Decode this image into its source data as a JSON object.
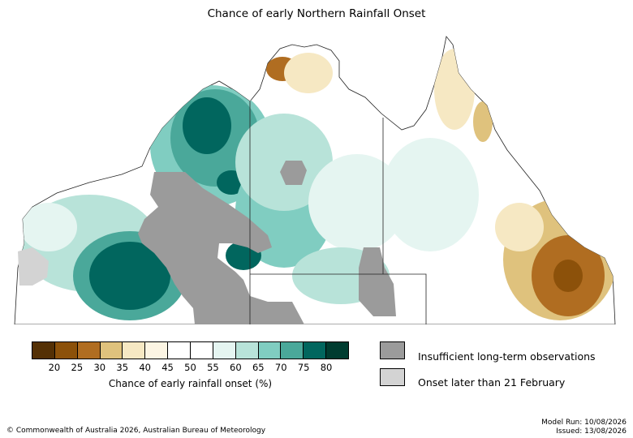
{
  "title": "Chance of early Northern Rainfall Onset",
  "colorbar": {
    "label": "Chance of early rainfall onset (%)",
    "colors": [
      "#543005",
      "#8c510a",
      "#b06d21",
      "#dfc27d",
      "#f6e8c3",
      "#fcf5e3",
      "#ffffff",
      "#ffffff",
      "#e5f5f1",
      "#b8e3d9",
      "#80cdc1",
      "#4aa89a",
      "#01665e",
      "#003c30"
    ],
    "ticks": [
      "20",
      "25",
      "30",
      "35",
      "40",
      "45",
      "50",
      "55",
      "60",
      "65",
      "70",
      "75",
      "80"
    ]
  },
  "legend": {
    "insufficient": {
      "label": "Insufficient long-term observations",
      "color": "#9b9b9b"
    },
    "later": {
      "label": "Onset later than 21 February",
      "color": "#d3d3d3"
    }
  },
  "footer": {
    "copyright": "© Commonwealth of Australia 2026, Australian Bureau of Meteorology",
    "model_run": "Model Run: 10/08/2026",
    "issued": "Issued: 13/08/2026"
  }
}
